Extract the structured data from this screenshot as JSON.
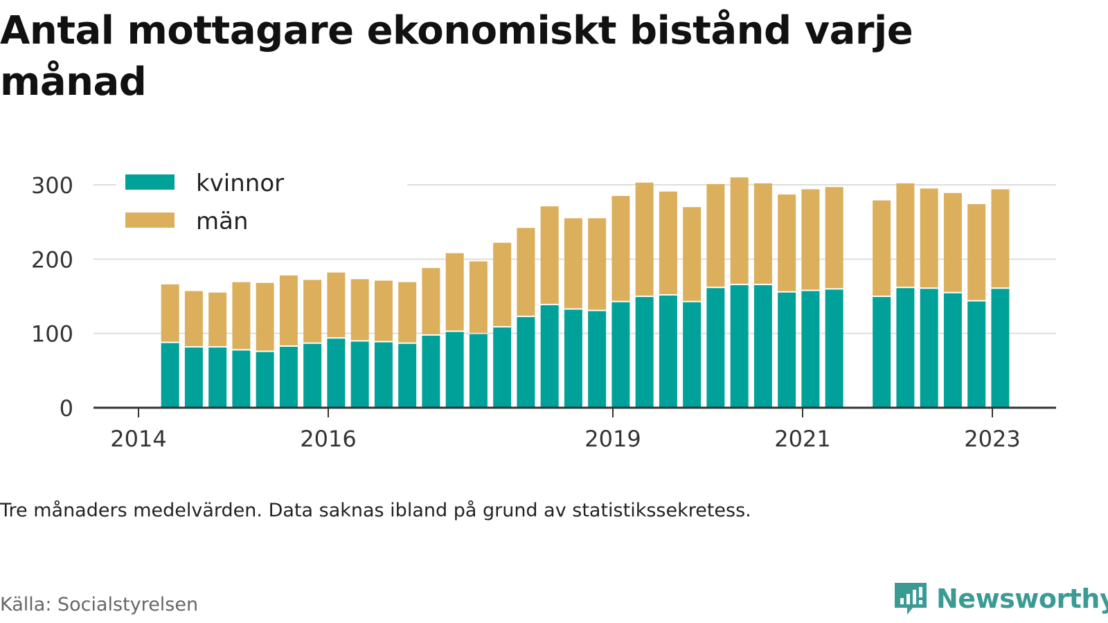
{
  "title": "Antal mottagare ekonomiskt bistånd varje månad",
  "note": "Tre månaders medelvärden. Data saknas ibland på grund av statistikssekretess.",
  "source": "Källa: Socialstyrelsen",
  "brand": "Newsworthy",
  "colors": {
    "kvinnor": "#00a199",
    "man": "#dbaf5c",
    "grid": "#dddddd",
    "axis": "#333333",
    "brand": "#3a9b95"
  },
  "chart_data": {
    "type": "bar",
    "stacked": true,
    "title": "Antal mottagare ekonomiskt bistånd varje månad",
    "xlabel": "",
    "ylabel": "",
    "ylim": [
      0,
      300
    ],
    "yticks": [
      0,
      100,
      200,
      300
    ],
    "xticks": [
      "2014",
      "2016",
      "2019",
      "2021",
      "2023"
    ],
    "grid": "horizontal",
    "legend": "top-left",
    "series": [
      {
        "name": "kvinnor",
        "color": "#00a199",
        "values": [
          87,
          81,
          81,
          77,
          75,
          82,
          86,
          93,
          89,
          88,
          86,
          97,
          102,
          99,
          108,
          122,
          138,
          132,
          130,
          142,
          149,
          151,
          142,
          161,
          165,
          165,
          155,
          157,
          159,
          null,
          149,
          161,
          160,
          154,
          143,
          160
        ]
      },
      {
        "name": "män",
        "color": "#dbaf5c",
        "values": [
          79,
          76,
          74,
          92,
          93,
          96,
          86,
          89,
          84,
          83,
          83,
          91,
          106,
          98,
          114,
          120,
          133,
          123,
          125,
          143,
          154,
          140,
          128,
          140,
          145,
          137,
          132,
          137,
          138,
          null,
          130,
          141,
          135,
          135,
          131,
          134
        ]
      }
    ],
    "x": [
      "2014-05",
      "2014-08",
      "2014-11",
      "2015-02",
      "2015-05",
      "2015-08",
      "2015-11",
      "2016-02",
      "2016-05",
      "2016-08",
      "2016-11",
      "2017-02",
      "2017-05",
      "2017-08",
      "2017-11",
      "2018-02",
      "2018-05",
      "2018-08",
      "2018-11",
      "2019-02",
      "2019-05",
      "2019-08",
      "2019-11",
      "2020-02",
      "2020-05",
      "2020-08",
      "2020-11",
      "2021-02",
      "2021-05",
      "2021-08",
      "2021-11",
      "2022-02",
      "2022-05",
      "2022-08",
      "2022-11",
      "2023-02"
    ]
  }
}
